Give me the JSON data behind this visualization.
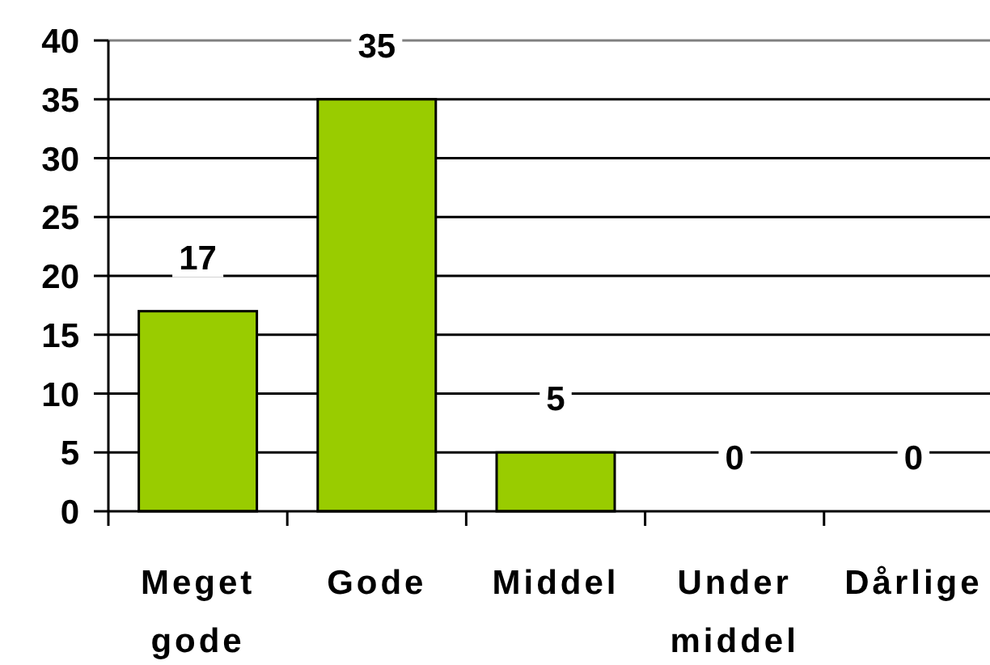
{
  "chart_data": {
    "type": "bar",
    "categories": [
      "Meget gode",
      "Gode",
      "Middel",
      "Under middel",
      "Dårlige"
    ],
    "values": [
      17,
      35,
      5,
      0,
      0
    ],
    "color": "#99cc00",
    "ylim": [
      0,
      40
    ],
    "yticks": [
      0,
      5,
      10,
      15,
      20,
      25,
      30,
      35,
      40
    ],
    "grid": "y",
    "data_labels": true
  }
}
